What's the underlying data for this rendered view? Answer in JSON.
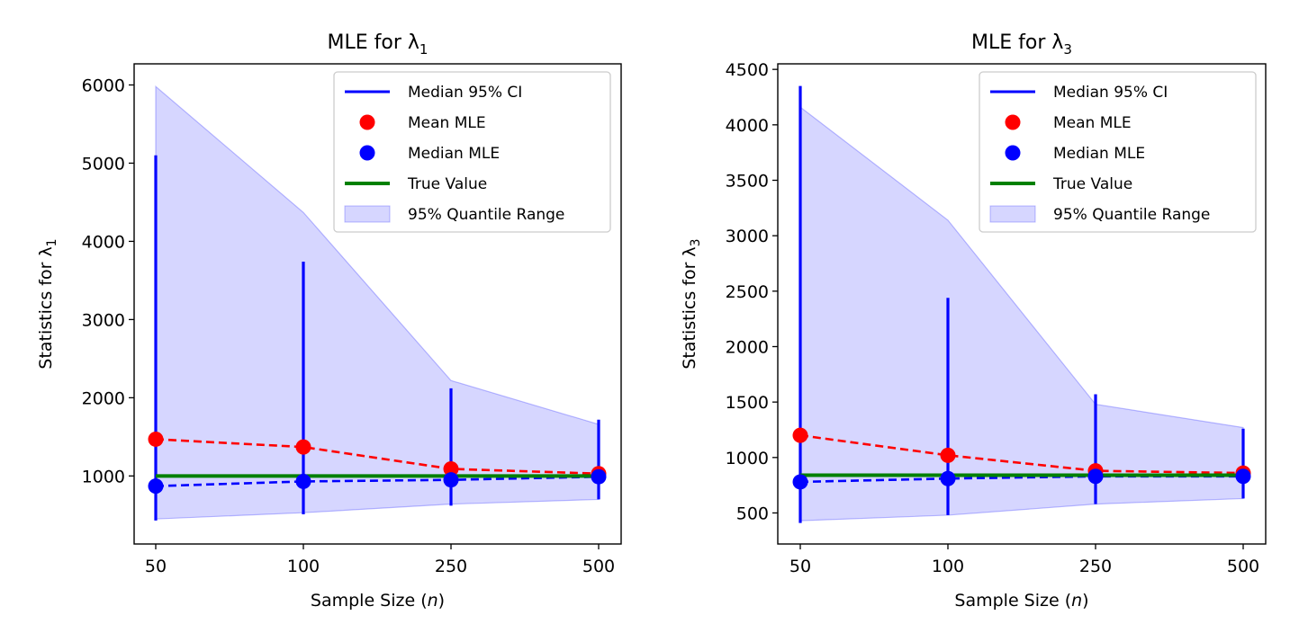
{
  "chart_data": [
    {
      "type": "line",
      "title": "MLE for λ",
      "title_sub": "1",
      "xlabel_pre": "Sample Size (",
      "xlabel_var": "n",
      "xlabel_post": ")",
      "ylabel_pre": "Statistics for λ",
      "ylabel_sub": "1",
      "categories": [
        "50",
        "100",
        "250",
        "500"
      ],
      "ylim": [
        130,
        6270
      ],
      "yticks": [
        1000,
        2000,
        3000,
        4000,
        5000,
        6000
      ],
      "series": [
        {
          "name": "Mean MLE",
          "values": [
            1470,
            1370,
            1090,
            1030
          ],
          "color": "#ff0000"
        },
        {
          "name": "Median MLE",
          "values": [
            870,
            930,
            950,
            990
          ],
          "color": "#0000ff"
        },
        {
          "name": "True Value",
          "values": [
            1000,
            1000,
            1000,
            1000
          ],
          "color": "#008000"
        },
        {
          "name": "Median 95% CI",
          "lower": [
            430,
            510,
            620,
            700
          ],
          "upper": [
            5100,
            3740,
            2120,
            1720
          ],
          "color": "#0000ff"
        },
        {
          "name": "95% Quantile Range",
          "lower": [
            450,
            530,
            640,
            700
          ],
          "upper": [
            5980,
            4370,
            2220,
            1660
          ],
          "color": "#0000ff"
        }
      ],
      "grid": false,
      "legend_position": "top-right"
    },
    {
      "type": "line",
      "title": "MLE for λ",
      "title_sub": "3",
      "xlabel_pre": "Sample Size (",
      "xlabel_var": "n",
      "xlabel_post": ")",
      "ylabel_pre": "Statistics for λ",
      "ylabel_sub": "3",
      "categories": [
        "50",
        "100",
        "250",
        "500"
      ],
      "ylim": [
        220,
        4550
      ],
      "yticks": [
        500,
        1000,
        1500,
        2000,
        2500,
        3000,
        3500,
        4000,
        4500
      ],
      "series": [
        {
          "name": "Mean MLE",
          "values": [
            1200,
            1020,
            880,
            860
          ],
          "color": "#ff0000"
        },
        {
          "name": "Median MLE",
          "values": [
            780,
            810,
            830,
            830
          ],
          "color": "#0000ff"
        },
        {
          "name": "True Value",
          "values": [
            840,
            840,
            840,
            840
          ],
          "color": "#008000"
        },
        {
          "name": "Median 95% CI",
          "lower": [
            410,
            480,
            580,
            630
          ],
          "upper": [
            4350,
            2440,
            1570,
            1260
          ],
          "color": "#0000ff"
        },
        {
          "name": "95% Quantile Range",
          "lower": [
            430,
            480,
            580,
            630
          ],
          "upper": [
            4160,
            3140,
            1480,
            1270
          ],
          "color": "#0000ff"
        }
      ],
      "grid": false,
      "legend_position": "top-right"
    }
  ],
  "legend": {
    "items": [
      "Median 95% CI",
      "Mean MLE",
      "Median MLE",
      "True Value",
      "95% Quantile Range"
    ]
  }
}
